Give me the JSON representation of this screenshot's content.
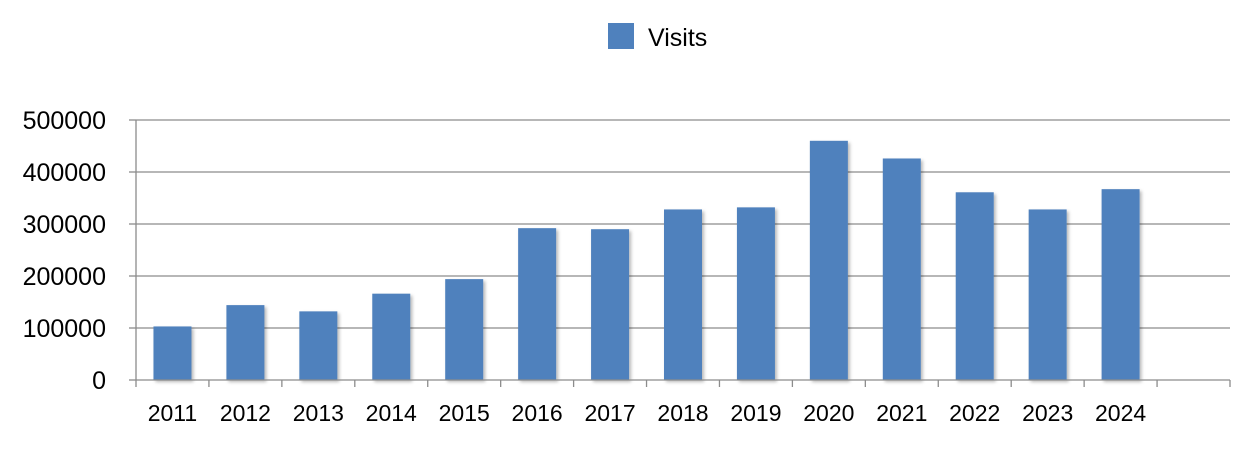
{
  "chart_data": {
    "type": "bar",
    "categories": [
      "2011",
      "2012",
      "2013",
      "2014",
      "2015",
      "2016",
      "2017",
      "2018",
      "2019",
      "2020",
      "2021",
      "2022",
      "2023",
      "2024"
    ],
    "series": [
      {
        "name": "Visits",
        "values": [
          103000,
          144000,
          132000,
          166000,
          194000,
          292000,
          290000,
          328000,
          332000,
          460000,
          426000,
          361000,
          328000,
          367000
        ]
      }
    ],
    "ylim": [
      0,
      500000
    ],
    "yticks": [
      "0",
      "100000",
      "200000",
      "300000",
      "400000",
      "500000"
    ],
    "grid": true,
    "legend_position": "top-center",
    "bar_color": "#4f81bd"
  }
}
